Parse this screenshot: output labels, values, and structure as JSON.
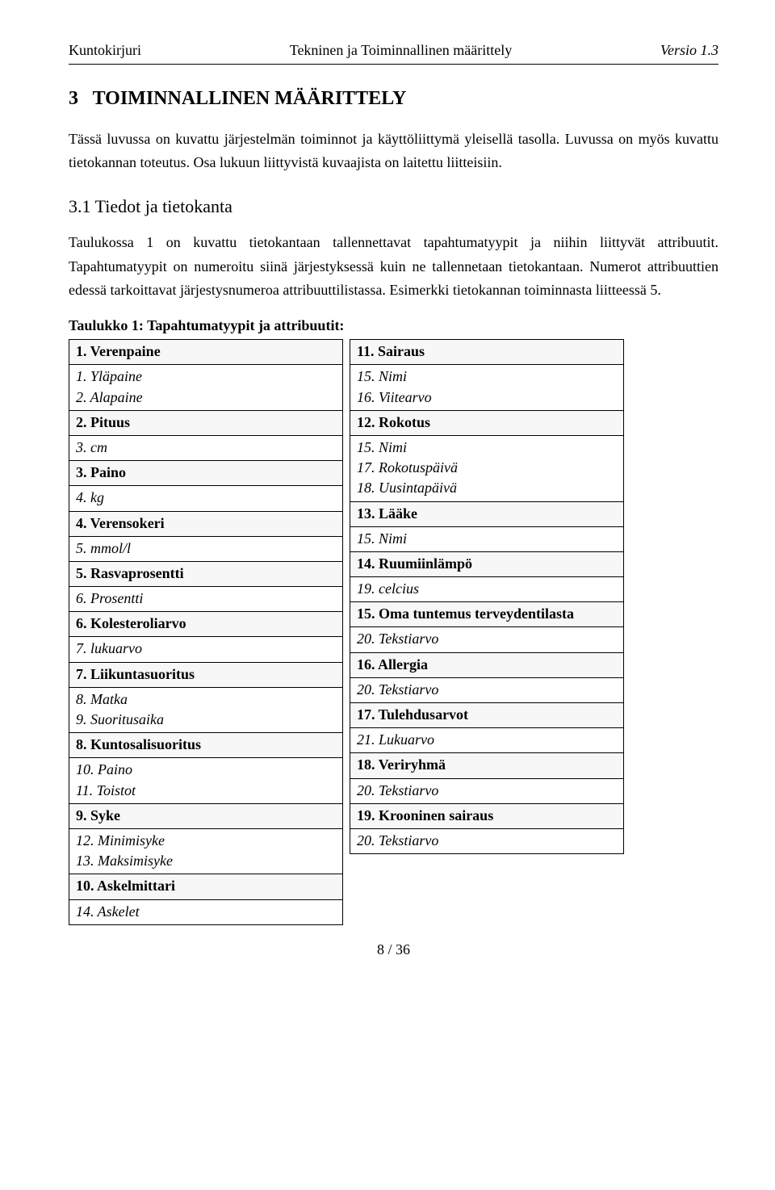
{
  "header": {
    "left": "Kuntokirjuri",
    "center": "Tekninen ja Toiminnallinen määrittely",
    "right": "Versio 1.3"
  },
  "section_number": "3",
  "section_title": "TOIMINNALLINEN MÄÄRITTELY",
  "para1": "Tässä luvussa on kuvattu järjestelmän toiminnot ja käyttöliittymä yleisellä tasolla. Luvussa on myös kuvattu tietokannan toteutus. Osa lukuun liittyvistä kuvaajista on laitettu liitteisiin.",
  "subsection_number": "3.1",
  "subsection_title": "Tiedot ja tietokanta",
  "para2": "Taulukossa 1 on kuvattu tietokantaan tallennettavat tapahtumatyypit ja niihin liittyvät attribuutit. Tapahtumatyypit on numeroitu siinä järjestyksessä kuin ne tallennetaan tietokantaan. Numerot attribuuttien edessä tarkoittavat järjestysnumeroa attribuuttilistassa. Esimerkki tietokannan toiminnasta liitteessä 5.",
  "table_caption": "Taulukko 1: Tapahtumatyypit ja attribuutit:",
  "left_table": [
    {
      "kind": "type",
      "text": "1. Verenpaine"
    },
    {
      "kind": "attr",
      "text": "1. Yläpaine\n2. Alapaine"
    },
    {
      "kind": "type",
      "text": "2. Pituus"
    },
    {
      "kind": "attr",
      "text": "3. cm"
    },
    {
      "kind": "type",
      "text": "3. Paino"
    },
    {
      "kind": "attr",
      "text": "4. kg"
    },
    {
      "kind": "type",
      "text": "4. Verensokeri"
    },
    {
      "kind": "attr",
      "text": "5. mmol/l"
    },
    {
      "kind": "type",
      "text": "5. Rasvaprosentti"
    },
    {
      "kind": "attr",
      "text": "6. Prosentti"
    },
    {
      "kind": "type",
      "text": "6. Kolesteroliarvo"
    },
    {
      "kind": "attr",
      "text": "7. lukuarvo"
    },
    {
      "kind": "type",
      "text": "7. Liikuntasuoritus"
    },
    {
      "kind": "attr",
      "text": "8. Matka\n9. Suoritusaika"
    },
    {
      "kind": "type",
      "text": "8. Kuntosalisuoritus"
    },
    {
      "kind": "attr",
      "text": "10. Paino\n11. Toistot"
    },
    {
      "kind": "type",
      "text": "9. Syke"
    },
    {
      "kind": "attr",
      "text": "12. Minimisyke\n13. Maksimisyke"
    },
    {
      "kind": "type",
      "text": "10. Askelmittari"
    },
    {
      "kind": "attr",
      "text": "14. Askelet"
    }
  ],
  "right_table": [
    {
      "kind": "type",
      "text": "11. Sairaus"
    },
    {
      "kind": "attr",
      "text": "15. Nimi\n16. Viitearvo"
    },
    {
      "kind": "type",
      "text": "12. Rokotus"
    },
    {
      "kind": "attr",
      "text": "15. Nimi\n17. Rokotuspäivä\n18. Uusintapäivä"
    },
    {
      "kind": "type",
      "text": "13. Lääke"
    },
    {
      "kind": "attr",
      "text": "15. Nimi"
    },
    {
      "kind": "type",
      "text": "14. Ruumiinlämpö"
    },
    {
      "kind": "attr",
      "text": "19. celcius"
    },
    {
      "kind": "type",
      "text": "15. Oma tuntemus terveydentilasta"
    },
    {
      "kind": "attr",
      "text": "20. Tekstiarvo"
    },
    {
      "kind": "type",
      "text": "16. Allergia"
    },
    {
      "kind": "attr",
      "text": "20. Tekstiarvo"
    },
    {
      "kind": "type",
      "text": "17. Tulehdusarvot"
    },
    {
      "kind": "attr",
      "text": "21. Lukuarvo"
    },
    {
      "kind": "type",
      "text": "18. Veriryhmä"
    },
    {
      "kind": "attr",
      "text": "20. Tekstiarvo"
    },
    {
      "kind": "type",
      "text": "19. Krooninen sairaus"
    },
    {
      "kind": "attr",
      "text": "20. Tekstiarvo"
    }
  ],
  "footer": "8 / 36",
  "colors": {
    "text": "#000000",
    "background": "#ffffff",
    "type_row_bg": "#f7f7f7",
    "border": "#000000"
  }
}
